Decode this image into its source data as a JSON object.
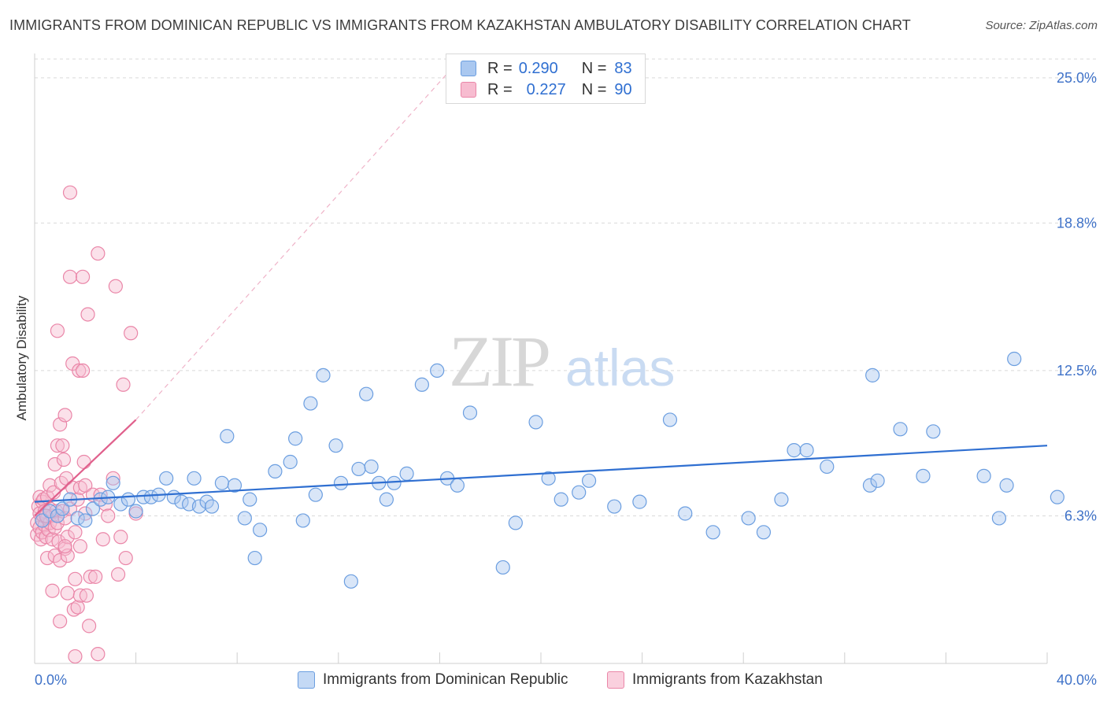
{
  "title": "IMMIGRANTS FROM DOMINICAN REPUBLIC VS IMMIGRANTS FROM KAZAKHSTAN AMBULATORY DISABILITY CORRELATION CHART",
  "source": "Source: ZipAtlas.com",
  "watermark": {
    "zip": "ZIP",
    "atlas": "atlas"
  },
  "legend": {
    "r_label": "R =",
    "n_label": "N =",
    "series": [
      {
        "r": "0.290",
        "n": "83"
      },
      {
        "r": "0.227",
        "n": "90"
      }
    ]
  },
  "bottom_legend": [
    "Immigrants from Dominican Republic",
    "Immigrants from Kazakhstan"
  ],
  "colors": {
    "blue_fill": "#aac8f0",
    "blue_stroke": "#6b9ee0",
    "blue_line": "#2f6fd1",
    "pink_fill": "#f7bcd0",
    "pink_stroke": "#ea86a8",
    "pink_line": "#e0608c",
    "tick": "#3f72c8",
    "grid": "#d9d9d9"
  },
  "chart_data": {
    "type": "scatter",
    "title": "IMMIGRANTS FROM DOMINICAN REPUBLIC VS IMMIGRANTS FROM KAZAKHSTAN AMBULATORY DISABILITY CORRELATION CHART",
    "xlabel": "",
    "ylabel": "Ambulatory Disability",
    "xlim": [
      0,
      40
    ],
    "ylim": [
      0,
      25.8
    ],
    "x_tick_labels": [
      "0.0%",
      "40.0%"
    ],
    "y_ticks": [
      6.3,
      12.5,
      18.8,
      25.0
    ],
    "y_tick_labels": [
      "6.3%",
      "12.5%",
      "18.8%",
      "25.0%"
    ],
    "grid": true,
    "legend_position": "top-center",
    "series": [
      {
        "name": "Immigrants from Dominican Republic",
        "r": 0.29,
        "n": 83,
        "trend": {
          "x": [
            0,
            40
          ],
          "y": [
            6.9,
            9.3
          ],
          "style": "solid"
        },
        "points": [
          [
            0.3,
            6.1
          ],
          [
            0.6,
            6.5
          ],
          [
            0.9,
            6.3
          ],
          [
            1.1,
            6.6
          ],
          [
            1.4,
            7.0
          ],
          [
            1.7,
            6.2
          ],
          [
            2.0,
            6.1
          ],
          [
            2.3,
            6.6
          ],
          [
            2.6,
            7.0
          ],
          [
            2.9,
            7.1
          ],
          [
            3.1,
            7.7
          ],
          [
            3.4,
            6.8
          ],
          [
            3.7,
            7.0
          ],
          [
            4.0,
            6.5
          ],
          [
            4.3,
            7.1
          ],
          [
            4.6,
            7.1
          ],
          [
            4.9,
            7.2
          ],
          [
            5.2,
            7.9
          ],
          [
            5.5,
            7.1
          ],
          [
            5.8,
            6.9
          ],
          [
            6.1,
            6.8
          ],
          [
            6.3,
            7.9
          ],
          [
            6.5,
            6.7
          ],
          [
            6.8,
            6.9
          ],
          [
            7.0,
            6.7
          ],
          [
            7.4,
            7.7
          ],
          [
            7.6,
            9.7
          ],
          [
            7.9,
            7.6
          ],
          [
            8.3,
            6.2
          ],
          [
            8.5,
            7.0
          ],
          [
            8.7,
            4.5
          ],
          [
            8.9,
            5.7
          ],
          [
            9.5,
            8.2
          ],
          [
            10.1,
            8.6
          ],
          [
            10.3,
            9.6
          ],
          [
            10.6,
            6.1
          ],
          [
            10.9,
            11.1
          ],
          [
            11.1,
            7.2
          ],
          [
            11.4,
            12.3
          ],
          [
            11.9,
            9.3
          ],
          [
            12.1,
            7.7
          ],
          [
            12.5,
            3.5
          ],
          [
            12.8,
            8.3
          ],
          [
            13.1,
            11.5
          ],
          [
            13.3,
            8.4
          ],
          [
            13.6,
            7.7
          ],
          [
            13.9,
            7.0
          ],
          [
            14.2,
            7.7
          ],
          [
            14.7,
            8.1
          ],
          [
            15.3,
            11.9
          ],
          [
            15.9,
            12.5
          ],
          [
            16.3,
            7.9
          ],
          [
            16.7,
            7.6
          ],
          [
            17.2,
            10.7
          ],
          [
            18.5,
            4.1
          ],
          [
            19.0,
            6.0
          ],
          [
            19.8,
            10.3
          ],
          [
            20.3,
            7.9
          ],
          [
            20.8,
            7.0
          ],
          [
            21.5,
            7.3
          ],
          [
            21.9,
            7.8
          ],
          [
            22.9,
            6.7
          ],
          [
            23.9,
            6.9
          ],
          [
            25.1,
            10.4
          ],
          [
            25.7,
            6.4
          ],
          [
            26.8,
            5.6
          ],
          [
            28.2,
            6.2
          ],
          [
            28.8,
            5.6
          ],
          [
            30.0,
            9.1
          ],
          [
            30.5,
            9.1
          ],
          [
            31.3,
            8.4
          ],
          [
            33.0,
            7.6
          ],
          [
            33.3,
            7.8
          ],
          [
            33.1,
            12.3
          ],
          [
            34.2,
            10.0
          ],
          [
            35.5,
            9.9
          ],
          [
            37.5,
            8.0
          ],
          [
            38.1,
            6.2
          ],
          [
            38.4,
            7.6
          ],
          [
            41.0,
            7.1
          ],
          [
            38.7,
            13.0
          ],
          [
            35.1,
            8.0
          ],
          [
            29.5,
            7.0
          ]
        ]
      },
      {
        "name": "Immigrants from Kazakhstan",
        "r": 0.227,
        "n": 90,
        "trend": {
          "x": [
            0,
            4.0
          ],
          "y": [
            6.3,
            10.4
          ],
          "style": "solid",
          "extended": {
            "x": [
              4.0,
              16.4
            ],
            "y": [
              10.4,
              25.3
            ],
            "style": "dashed"
          }
        },
        "points": [
          [
            0.1,
            5.5
          ],
          [
            0.1,
            6.0
          ],
          [
            0.15,
            6.7
          ],
          [
            0.2,
            5.8
          ],
          [
            0.2,
            6.4
          ],
          [
            0.2,
            7.1
          ],
          [
            0.25,
            5.3
          ],
          [
            0.3,
            6.1
          ],
          [
            0.3,
            6.9
          ],
          [
            0.3,
            5.6
          ],
          [
            0.35,
            7.0
          ],
          [
            0.35,
            6.3
          ],
          [
            0.4,
            5.9
          ],
          [
            0.4,
            6.5
          ],
          [
            0.45,
            5.4
          ],
          [
            0.5,
            7.1
          ],
          [
            0.5,
            6.2
          ],
          [
            0.5,
            4.5
          ],
          [
            0.55,
            5.7
          ],
          [
            0.6,
            6.6
          ],
          [
            0.6,
            6.0
          ],
          [
            0.6,
            7.6
          ],
          [
            0.7,
            5.3
          ],
          [
            0.7,
            6.3
          ],
          [
            0.7,
            3.1
          ],
          [
            0.75,
            7.3
          ],
          [
            0.8,
            4.6
          ],
          [
            0.8,
            5.8
          ],
          [
            0.8,
            8.5
          ],
          [
            0.85,
            6.5
          ],
          [
            0.9,
            9.3
          ],
          [
            0.9,
            14.2
          ],
          [
            0.9,
            6.0
          ],
          [
            0.95,
            5.2
          ],
          [
            1.0,
            10.2
          ],
          [
            1.0,
            4.4
          ],
          [
            1.0,
            1.8
          ],
          [
            1.05,
            7.7
          ],
          [
            1.1,
            6.5
          ],
          [
            1.1,
            9.3
          ],
          [
            1.15,
            8.7
          ],
          [
            1.2,
            10.6
          ],
          [
            1.2,
            4.9
          ],
          [
            1.2,
            6.2
          ],
          [
            1.25,
            7.9
          ],
          [
            1.3,
            5.4
          ],
          [
            1.3,
            3.0
          ],
          [
            1.3,
            4.6
          ],
          [
            1.4,
            6.6
          ],
          [
            1.4,
            16.5
          ],
          [
            1.4,
            20.1
          ],
          [
            1.5,
            12.8
          ],
          [
            1.5,
            7.5
          ],
          [
            1.55,
            2.3
          ],
          [
            1.6,
            3.6
          ],
          [
            1.6,
            5.6
          ],
          [
            1.6,
            0.3
          ],
          [
            1.7,
            7.0
          ],
          [
            1.7,
            2.4
          ],
          [
            1.75,
            12.5
          ],
          [
            1.8,
            5.0
          ],
          [
            1.8,
            7.5
          ],
          [
            1.8,
            2.9
          ],
          [
            1.9,
            16.5
          ],
          [
            1.9,
            12.5
          ],
          [
            1.95,
            8.6
          ],
          [
            2.0,
            6.4
          ],
          [
            2.0,
            7.6
          ],
          [
            2.05,
            2.9
          ],
          [
            2.1,
            14.9
          ],
          [
            2.15,
            1.6
          ],
          [
            2.2,
            3.7
          ],
          [
            2.3,
            7.2
          ],
          [
            2.4,
            3.7
          ],
          [
            2.5,
            17.5
          ],
          [
            2.6,
            7.2
          ],
          [
            2.7,
            5.3
          ],
          [
            2.8,
            6.8
          ],
          [
            2.9,
            6.3
          ],
          [
            2.5,
            0.4
          ],
          [
            3.1,
            7.9
          ],
          [
            3.2,
            16.1
          ],
          [
            3.3,
            3.8
          ],
          [
            3.4,
            5.4
          ],
          [
            3.5,
            11.9
          ],
          [
            3.6,
            4.5
          ],
          [
            3.8,
            14.1
          ],
          [
            4.0,
            6.4
          ],
          [
            0.45,
            6.3
          ],
          [
            1.2,
            5.0
          ]
        ]
      }
    ]
  }
}
